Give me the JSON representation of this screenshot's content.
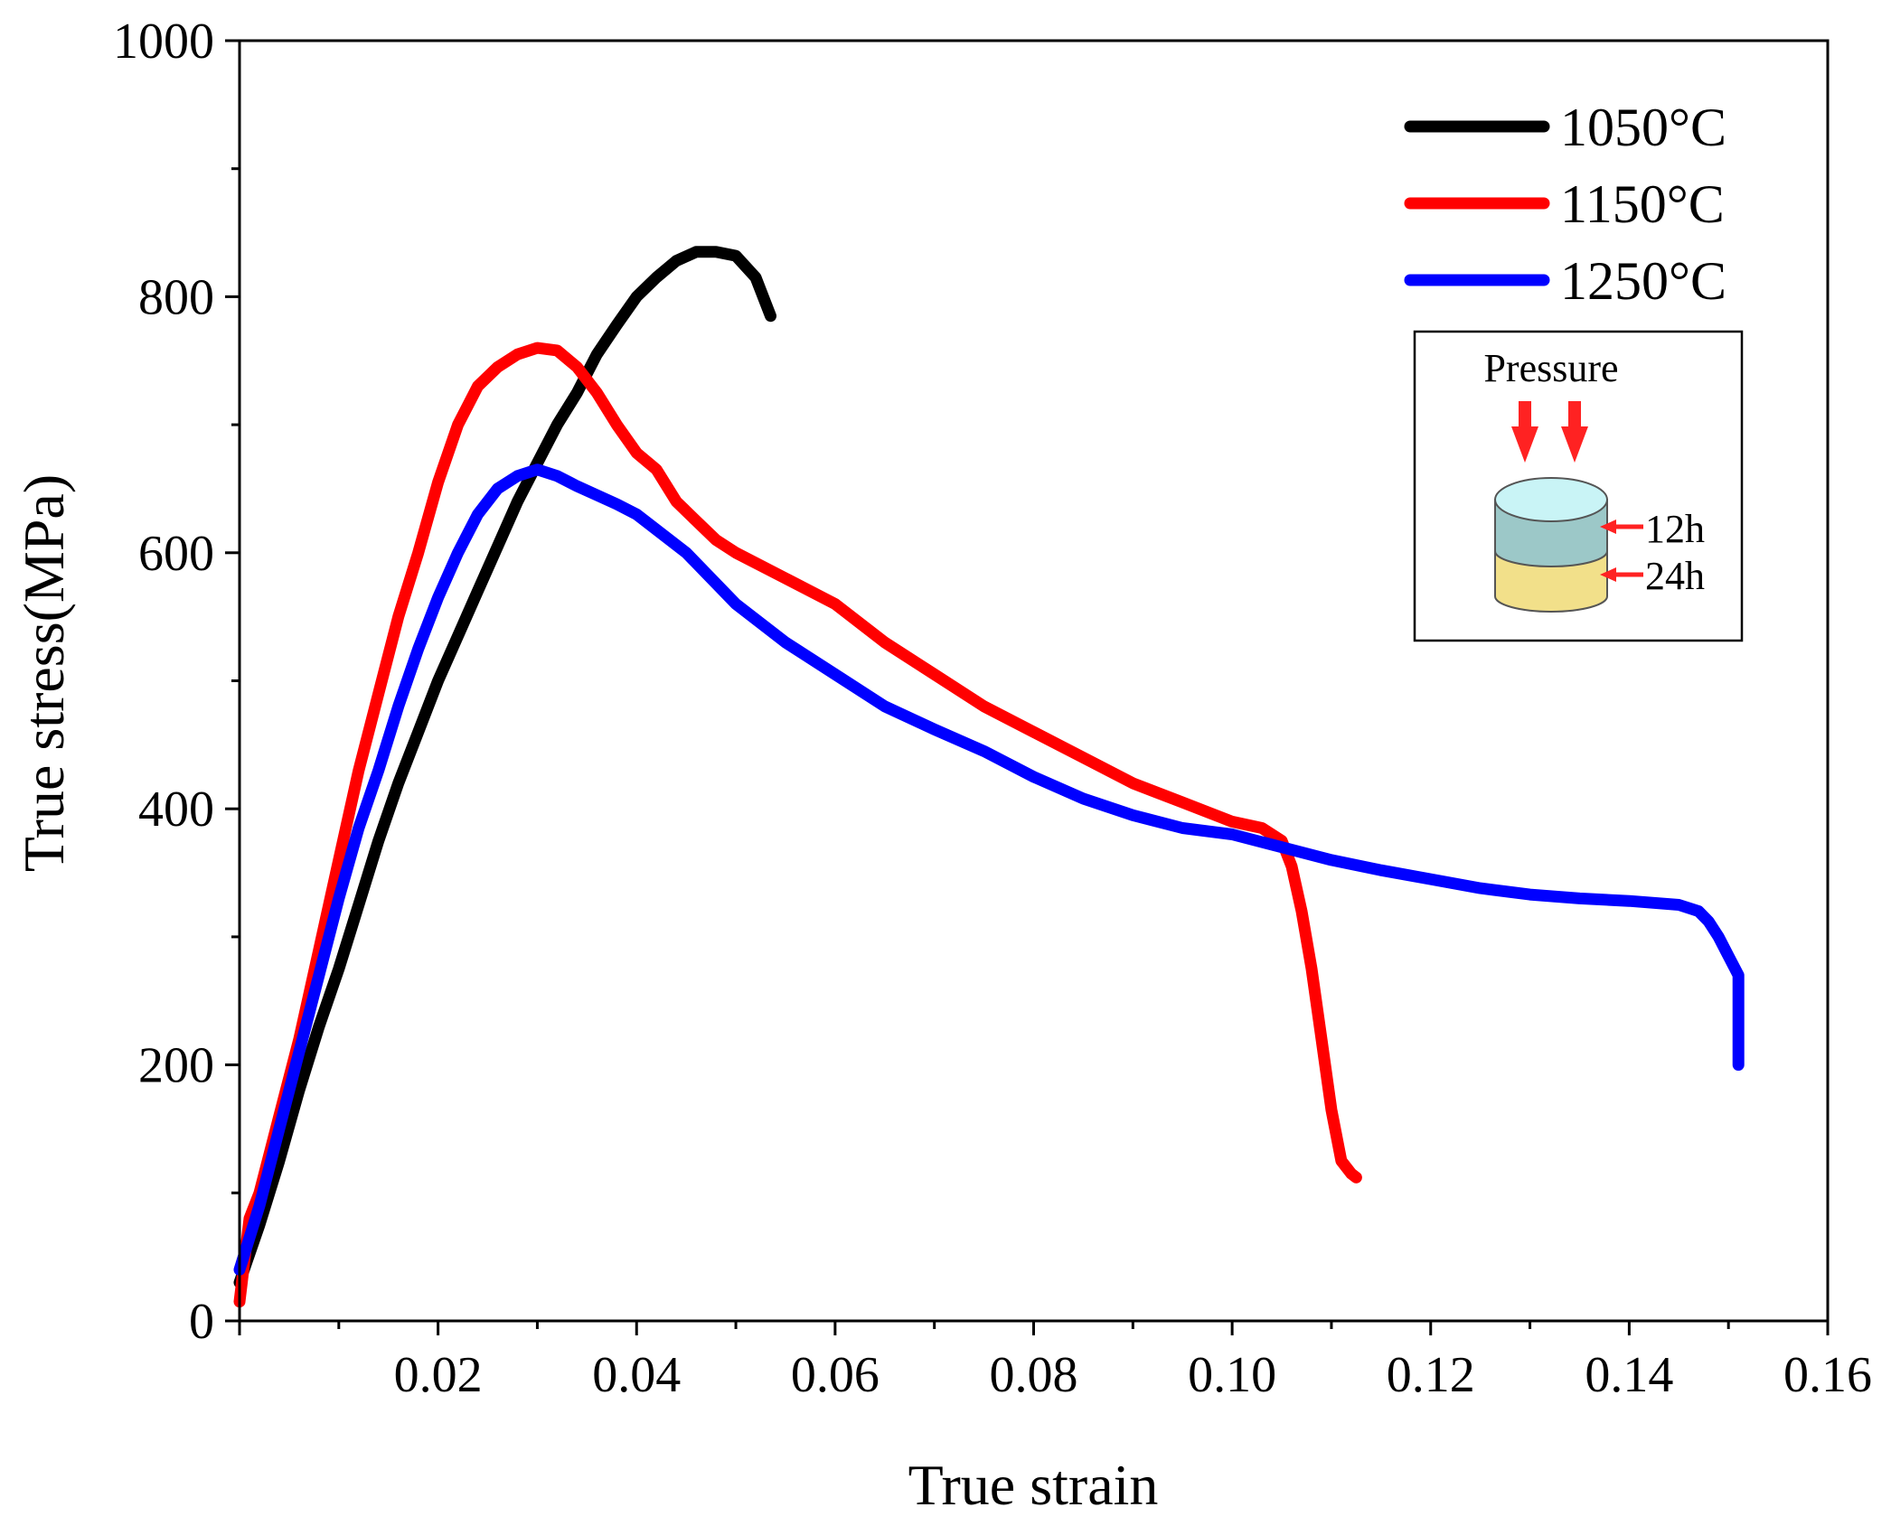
{
  "chart_data": {
    "type": "line",
    "title": "",
    "xlabel": "True strain",
    "ylabel": "True stress(MPa)",
    "xlim": [
      0.0,
      0.16
    ],
    "ylim": [
      0,
      1000
    ],
    "x_ticks": [
      0.02,
      0.04,
      0.06,
      0.08,
      0.1,
      0.12,
      0.14,
      0.16
    ],
    "x_tick_labels": [
      "0.02",
      "0.04",
      "0.06",
      "0.08",
      "0.10",
      "0.12",
      "0.14",
      "0.16"
    ],
    "y_ticks": [
      0,
      200,
      400,
      600,
      800,
      1000
    ],
    "y_tick_labels": [
      "0",
      "200",
      "400",
      "600",
      "800",
      "1000"
    ],
    "grid": false,
    "legend_position": "top-right",
    "series": [
      {
        "name": "1050°C",
        "color": "#000000",
        "x": [
          0.0,
          0.002,
          0.004,
          0.006,
          0.008,
          0.01,
          0.012,
          0.014,
          0.016,
          0.018,
          0.02,
          0.022,
          0.024,
          0.026,
          0.028,
          0.03,
          0.032,
          0.034,
          0.036,
          0.038,
          0.04,
          0.042,
          0.044,
          0.046,
          0.048,
          0.05,
          0.052,
          0.0535
        ],
        "y": [
          30,
          75,
          125,
          180,
          230,
          275,
          325,
          375,
          420,
          460,
          500,
          535,
          570,
          605,
          640,
          670,
          700,
          725,
          755,
          778,
          800,
          815,
          828,
          835,
          835,
          832,
          815,
          785
        ]
      },
      {
        "name": "1150°C",
        "color": "#ff0000",
        "x": [
          0.0,
          0.001,
          0.002,
          0.004,
          0.006,
          0.008,
          0.01,
          0.012,
          0.014,
          0.016,
          0.018,
          0.02,
          0.022,
          0.024,
          0.026,
          0.028,
          0.03,
          0.032,
          0.034,
          0.036,
          0.038,
          0.04,
          0.042,
          0.044,
          0.046,
          0.048,
          0.05,
          0.055,
          0.06,
          0.065,
          0.07,
          0.075,
          0.08,
          0.085,
          0.09,
          0.095,
          0.1,
          0.103,
          0.105,
          0.106,
          0.107,
          0.108,
          0.109,
          0.11,
          0.111,
          0.112,
          0.1125
        ],
        "y": [
          15,
          80,
          100,
          160,
          220,
          290,
          360,
          430,
          490,
          550,
          600,
          655,
          700,
          730,
          745,
          755,
          760,
          758,
          745,
          725,
          700,
          678,
          665,
          640,
          625,
          610,
          600,
          580,
          560,
          530,
          505,
          480,
          460,
          440,
          420,
          405,
          390,
          385,
          375,
          355,
          320,
          275,
          220,
          165,
          125,
          115,
          112
        ]
      },
      {
        "name": "1250°C",
        "color": "#0000ff",
        "x": [
          0.0,
          0.002,
          0.004,
          0.006,
          0.008,
          0.01,
          0.012,
          0.014,
          0.016,
          0.018,
          0.02,
          0.022,
          0.024,
          0.026,
          0.028,
          0.03,
          0.032,
          0.034,
          0.036,
          0.038,
          0.04,
          0.045,
          0.05,
          0.055,
          0.06,
          0.065,
          0.07,
          0.075,
          0.08,
          0.085,
          0.09,
          0.095,
          0.1,
          0.105,
          0.11,
          0.115,
          0.12,
          0.125,
          0.13,
          0.135,
          0.14,
          0.145,
          0.147,
          0.148,
          0.149,
          0.15,
          0.151,
          0.151,
          0.151
        ],
        "y": [
          40,
          90,
          150,
          210,
          270,
          330,
          385,
          430,
          480,
          525,
          565,
          600,
          630,
          650,
          660,
          665,
          660,
          652,
          645,
          638,
          630,
          600,
          560,
          530,
          505,
          480,
          462,
          445,
          425,
          408,
          395,
          385,
          380,
          370,
          360,
          352,
          345,
          338,
          333,
          330,
          328,
          325,
          320,
          312,
          300,
          285,
          270,
          230,
          200
        ]
      }
    ]
  },
  "inset": {
    "pressure_label": "Pressure",
    "label_top": "12h",
    "label_bottom": "24h"
  }
}
